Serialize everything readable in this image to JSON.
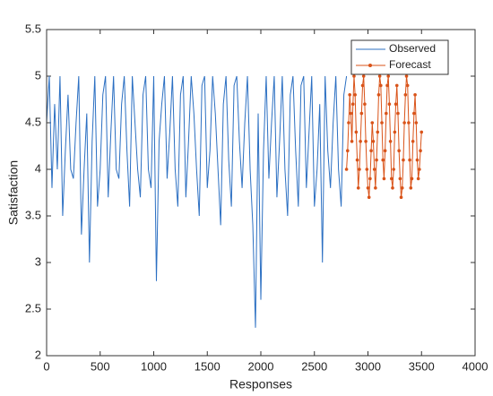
{
  "chart_data": {
    "type": "line",
    "xlabel": "Responses",
    "ylabel": "Satisfaction",
    "xlim": [
      0,
      4000
    ],
    "xticks": [
      0,
      500,
      1000,
      1500,
      2000,
      2500,
      3000,
      3500,
      4000
    ],
    "ylim": [
      2,
      5.5
    ],
    "yticks": [
      2,
      2.5,
      3,
      3.5,
      4,
      4.5,
      5,
      5.5
    ],
    "legend": "northeast",
    "series": [
      {
        "name": "Observed",
        "color": "#2b6fc2",
        "marker": false,
        "x": [
          0,
          25,
          50,
          75,
          100,
          125,
          150,
          175,
          200,
          225,
          250,
          275,
          300,
          325,
          350,
          375,
          400,
          425,
          450,
          475,
          500,
          525,
          550,
          575,
          600,
          625,
          650,
          675,
          700,
          725,
          750,
          775,
          800,
          825,
          850,
          875,
          900,
          925,
          950,
          975,
          1000,
          1025,
          1050,
          1075,
          1100,
          1125,
          1150,
          1175,
          1200,
          1225,
          1250,
          1275,
          1300,
          1325,
          1350,
          1375,
          1400,
          1425,
          1450,
          1475,
          1500,
          1525,
          1550,
          1575,
          1600,
          1625,
          1650,
          1675,
          1700,
          1725,
          1750,
          1775,
          1800,
          1825,
          1850,
          1875,
          1900,
          1925,
          1950,
          1975,
          2000,
          2025,
          2050,
          2075,
          2100,
          2125,
          2150,
          2175,
          2200,
          2225,
          2250,
          2275,
          2300,
          2325,
          2350,
          2375,
          2400,
          2425,
          2450,
          2475,
          2500,
          2525,
          2550,
          2575,
          2600,
          2625,
          2650,
          2675,
          2700,
          2725,
          2750,
          2775,
          2800
        ],
        "values": [
          4.5,
          5,
          3.8,
          4.7,
          4,
          5,
          3.5,
          4.2,
          4.8,
          4,
          3.9,
          4.5,
          5,
          3.3,
          4,
          4.6,
          3,
          4.3,
          5,
          3.6,
          4,
          4.8,
          5,
          3.7,
          4.4,
          5,
          4,
          3.9,
          4.7,
          5,
          4.2,
          3.6,
          5,
          4.5,
          4,
          3.7,
          4.8,
          5,
          4,
          3.8,
          5,
          2.8,
          4.3,
          4.7,
          5,
          3.9,
          4.4,
          5,
          4,
          3.6,
          4.8,
          5,
          3.7,
          4.3,
          5,
          4.6,
          4,
          3.5,
          4.9,
          5,
          3.8,
          4.2,
          5,
          4.6,
          4,
          3.4,
          4.7,
          5,
          4.1,
          3.6,
          4.9,
          5,
          4.3,
          3.8,
          4.5,
          5,
          4,
          3.4,
          2.3,
          4.6,
          2.6,
          4.2,
          5,
          3.9,
          4.5,
          5,
          3.7,
          4.3,
          5,
          4,
          3.5,
          4.8,
          5,
          4.2,
          3.6,
          4.9,
          5,
          3.8,
          4.4,
          5,
          3.6,
          4,
          4.7,
          3,
          5,
          4.2,
          3.8,
          4.5,
          5,
          4,
          3.6,
          4.8,
          5
        ]
      },
      {
        "name": "Forecast",
        "color": "#d95319",
        "marker": true,
        "x": [
          2800,
          2810,
          2820,
          2830,
          2840,
          2850,
          2860,
          2870,
          2880,
          2890,
          2900,
          2910,
          2920,
          2930,
          2940,
          2950,
          2960,
          2970,
          2980,
          2990,
          3000,
          3010,
          3020,
          3030,
          3040,
          3050,
          3060,
          3070,
          3080,
          3090,
          3100,
          3110,
          3120,
          3130,
          3140,
          3150,
          3160,
          3170,
          3180,
          3190,
          3200,
          3210,
          3220,
          3230,
          3240,
          3250,
          3260,
          3270,
          3280,
          3290,
          3300,
          3310,
          3320,
          3330,
          3340,
          3350,
          3360,
          3370,
          3380,
          3390,
          3400,
          3410,
          3420,
          3430,
          3440,
          3450,
          3460,
          3470,
          3480,
          3490,
          3500
        ],
        "values": [
          4.0,
          4.2,
          4.5,
          4.8,
          4.6,
          4.3,
          4.7,
          5.0,
          4.8,
          4.4,
          4.1,
          3.8,
          4.0,
          4.3,
          4.6,
          4.9,
          5.0,
          4.7,
          4.3,
          4.0,
          3.8,
          3.7,
          3.9,
          4.2,
          4.5,
          4.3,
          4.0,
          3.8,
          4.1,
          4.4,
          4.8,
          5.0,
          4.9,
          4.5,
          4.1,
          3.9,
          4.2,
          4.6,
          4.9,
          5.0,
          4.7,
          4.3,
          3.9,
          3.8,
          4.0,
          4.4,
          4.7,
          4.9,
          4.6,
          4.2,
          3.9,
          3.7,
          3.8,
          4.1,
          4.5,
          4.8,
          5.0,
          4.9,
          4.5,
          4.1,
          3.8,
          3.9,
          4.3,
          4.6,
          4.8,
          4.5,
          4.1,
          3.9,
          4.0,
          4.2,
          4.4
        ]
      }
    ]
  }
}
